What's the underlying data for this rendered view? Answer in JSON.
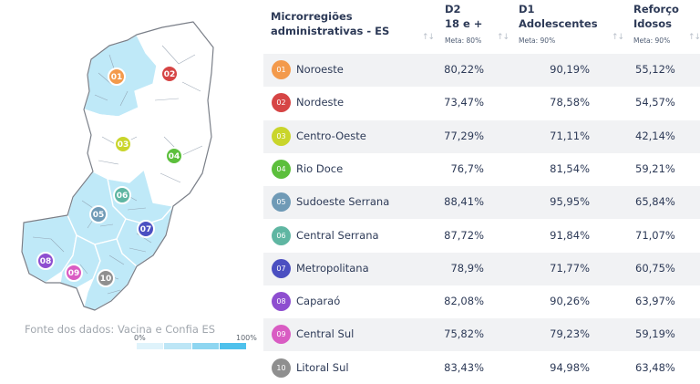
{
  "map": {
    "source_label": "Fonte dos dados: Vacina e Confia ES",
    "legend_min": "0%",
    "legend_max": "100%",
    "legend_colors": [
      "#dff3fb",
      "#bde6f6",
      "#8ed6f1",
      "#4fc1ec"
    ],
    "colors": {
      "highlight": "#bfe9f8",
      "base": "#ffffff",
      "outline": "#7a7f88"
    }
  },
  "table": {
    "headers": {
      "region": "Microrregiões administrativas - ES",
      "d2_line1": "D2",
      "d2_line2": "18 e +",
      "d2_meta": "Meta: 80%",
      "d1_line1": "D1",
      "d1_line2": "Adolescentes",
      "d1_meta": "Meta: 90%",
      "ref_line1": "Reforço",
      "ref_line2": "Idosos",
      "ref_meta": "Meta: 90%",
      "sort_icon": "sort-arrows-icon"
    },
    "rows": [
      {
        "num": "01",
        "name": "Noroeste",
        "d2": "80,22%",
        "d1": "90,19%",
        "ref": "55,12%",
        "color": "#f39a4c"
      },
      {
        "num": "02",
        "name": "Nordeste",
        "d2": "73,47%",
        "d1": "78,58%",
        "ref": "54,57%",
        "color": "#d64545"
      },
      {
        "num": "03",
        "name": "Centro-Oeste",
        "d2": "77,29%",
        "d1": "71,11%",
        "ref": "42,14%",
        "color": "#c9d52b"
      },
      {
        "num": "04",
        "name": "Rio Doce",
        "d2": "76,7%",
        "d1": "81,54%",
        "ref": "59,21%",
        "color": "#5cbf3c"
      },
      {
        "num": "05",
        "name": "Sudoeste Serrana",
        "d2": "88,41%",
        "d1": "95,95%",
        "ref": "65,84%",
        "color": "#6f9ab6"
      },
      {
        "num": "06",
        "name": "Central Serrana",
        "d2": "87,72%",
        "d1": "91,84%",
        "ref": "71,07%",
        "color": "#5fb6a2"
      },
      {
        "num": "07",
        "name": "Metropolitana",
        "d2": "78,9%",
        "d1": "71,77%",
        "ref": "60,75%",
        "color": "#4b4fc1"
      },
      {
        "num": "08",
        "name": "Caparaó",
        "d2": "82,08%",
        "d1": "90,26%",
        "ref": "63,97%",
        "color": "#8e4ed0"
      },
      {
        "num": "09",
        "name": "Central Sul",
        "d2": "75,82%",
        "d1": "79,23%",
        "ref": "59,19%",
        "color": "#d95cc3"
      },
      {
        "num": "10",
        "name": "Litoral Sul",
        "d2": "83,43%",
        "d1": "94,98%",
        "ref": "63,48%",
        "color": "#8f8f8f"
      }
    ]
  }
}
